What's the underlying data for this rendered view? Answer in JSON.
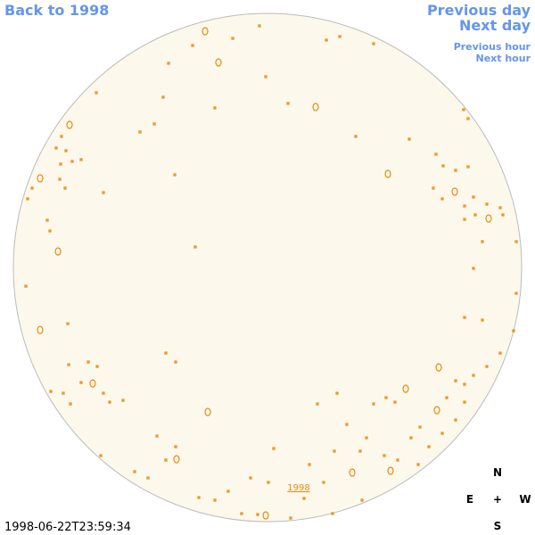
{
  "header": {
    "back_link": "Back to 1998",
    "previous_day": "Previous day",
    "next_day": "Next day",
    "previous_hour": "Previous hour",
    "next_hour": "Next hour"
  },
  "image": {
    "label": "1998",
    "timestamp": "1998-06-22T23:59:34"
  },
  "compass": {
    "north": "N",
    "east": "E",
    "center": "+",
    "west": "W",
    "south": "S"
  }
}
